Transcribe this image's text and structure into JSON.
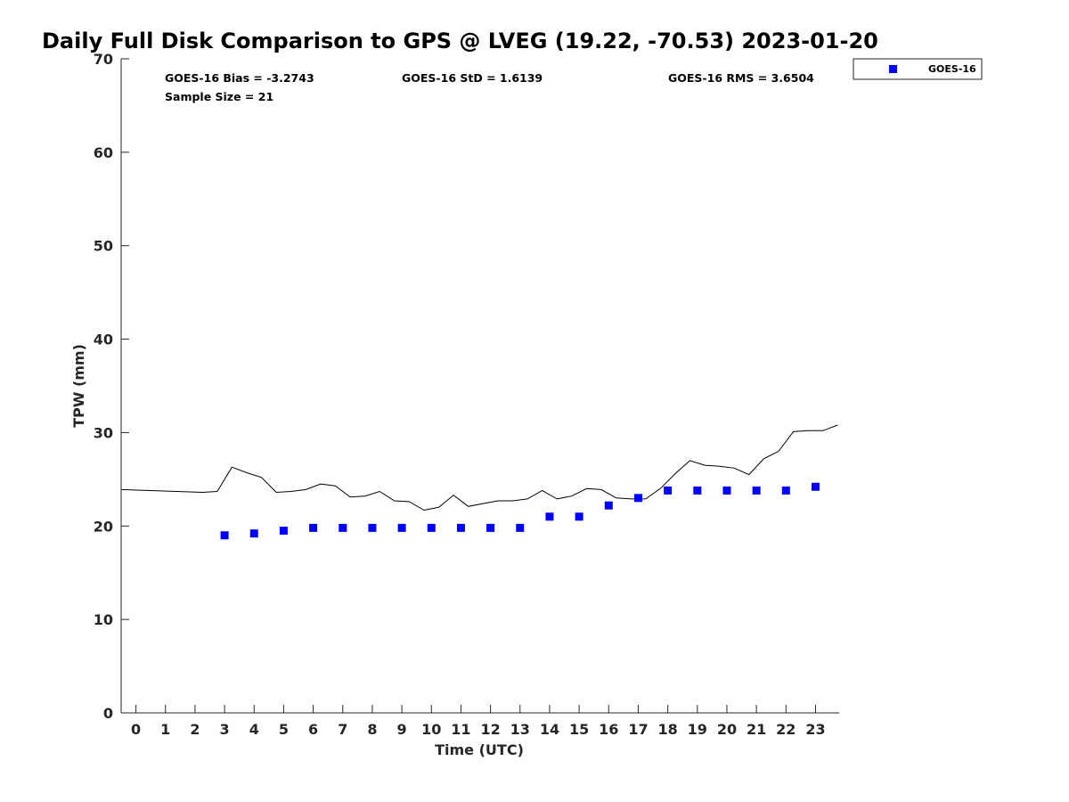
{
  "chart_data": {
    "type": "scatter",
    "title": "Daily Full Disk Comparison to GPS @ LVEG (19.22, -70.53) 2023-01-20",
    "xlabel": "Time (UTC)",
    "ylabel": "TPW (mm)",
    "xlim": [
      -0.5,
      23.8
    ],
    "ylim": [
      0,
      70
    ],
    "x_ticks": [
      0,
      1,
      2,
      3,
      4,
      5,
      6,
      7,
      8,
      9,
      10,
      11,
      12,
      13,
      14,
      15,
      16,
      17,
      18,
      19,
      20,
      21,
      22,
      23
    ],
    "x_tick_labels": [
      "0",
      "1",
      "2",
      "3",
      "4",
      "5",
      "6",
      "7",
      "8",
      "9",
      "10",
      "11",
      "12",
      "13",
      "14",
      "15",
      "16",
      "17",
      "18",
      "19",
      "20",
      "21",
      "22",
      "23"
    ],
    "y_ticks": [
      0,
      10,
      20,
      30,
      40,
      50,
      60,
      70
    ],
    "y_tick_labels": [
      "0",
      "10",
      "20",
      "30",
      "40",
      "50",
      "60",
      "70"
    ],
    "grid": false,
    "legend_position": "top-right outside plot",
    "stats": {
      "bias": "GOES-16 Bias = -3.2743",
      "std": "GOES-16 StD = 1.6139",
      "rms": "GOES-16 RMS = 3.6504",
      "sample": "Sample Size = 21"
    },
    "series": [
      {
        "name": "GOES-16",
        "kind": "scatter",
        "marker": "square",
        "color": "#0000ff",
        "x": [
          3,
          4,
          5,
          6,
          7,
          8,
          9,
          10,
          11,
          12,
          13,
          14,
          15,
          16,
          17,
          18,
          19,
          20,
          21,
          22,
          23
        ],
        "y": [
          19.0,
          19.2,
          19.5,
          19.8,
          19.8,
          19.8,
          19.8,
          19.8,
          19.8,
          19.8,
          19.8,
          21.0,
          21.0,
          22.2,
          23.0,
          23.8,
          23.8,
          23.8,
          23.8,
          23.8,
          24.2
        ]
      },
      {
        "kind": "line",
        "color": "#000000",
        "x": [
          -0.5,
          2.25,
          2.75,
          3.25,
          3.75,
          4.25,
          4.75,
          5.25,
          5.75,
          6.25,
          6.75,
          7.25,
          7.75,
          8.25,
          8.75,
          9.25,
          9.75,
          10.25,
          10.75,
          11.25,
          11.75,
          12.25,
          12.75,
          13.25,
          13.75,
          14.25,
          14.75,
          15.25,
          15.75,
          16.25,
          16.75,
          17.25,
          17.75,
          18.25,
          18.75,
          19.25,
          19.75,
          20.25,
          20.75,
          21.25,
          21.75,
          22.25,
          22.75,
          23.25,
          23.75
        ],
        "y": [
          23.9,
          23.6,
          23.7,
          26.3,
          25.7,
          25.2,
          23.6,
          23.7,
          23.9,
          24.5,
          24.3,
          23.1,
          23.2,
          23.7,
          22.7,
          22.6,
          21.7,
          22.0,
          23.3,
          22.1,
          22.4,
          22.7,
          22.7,
          22.9,
          23.8,
          22.9,
          23.2,
          24.0,
          23.9,
          23.0,
          22.9,
          22.9,
          24.0,
          25.6,
          27.0,
          26.5,
          26.4,
          26.2,
          25.5,
          27.2,
          28.0,
          30.1,
          30.2,
          30.2,
          30.8
        ]
      }
    ]
  }
}
